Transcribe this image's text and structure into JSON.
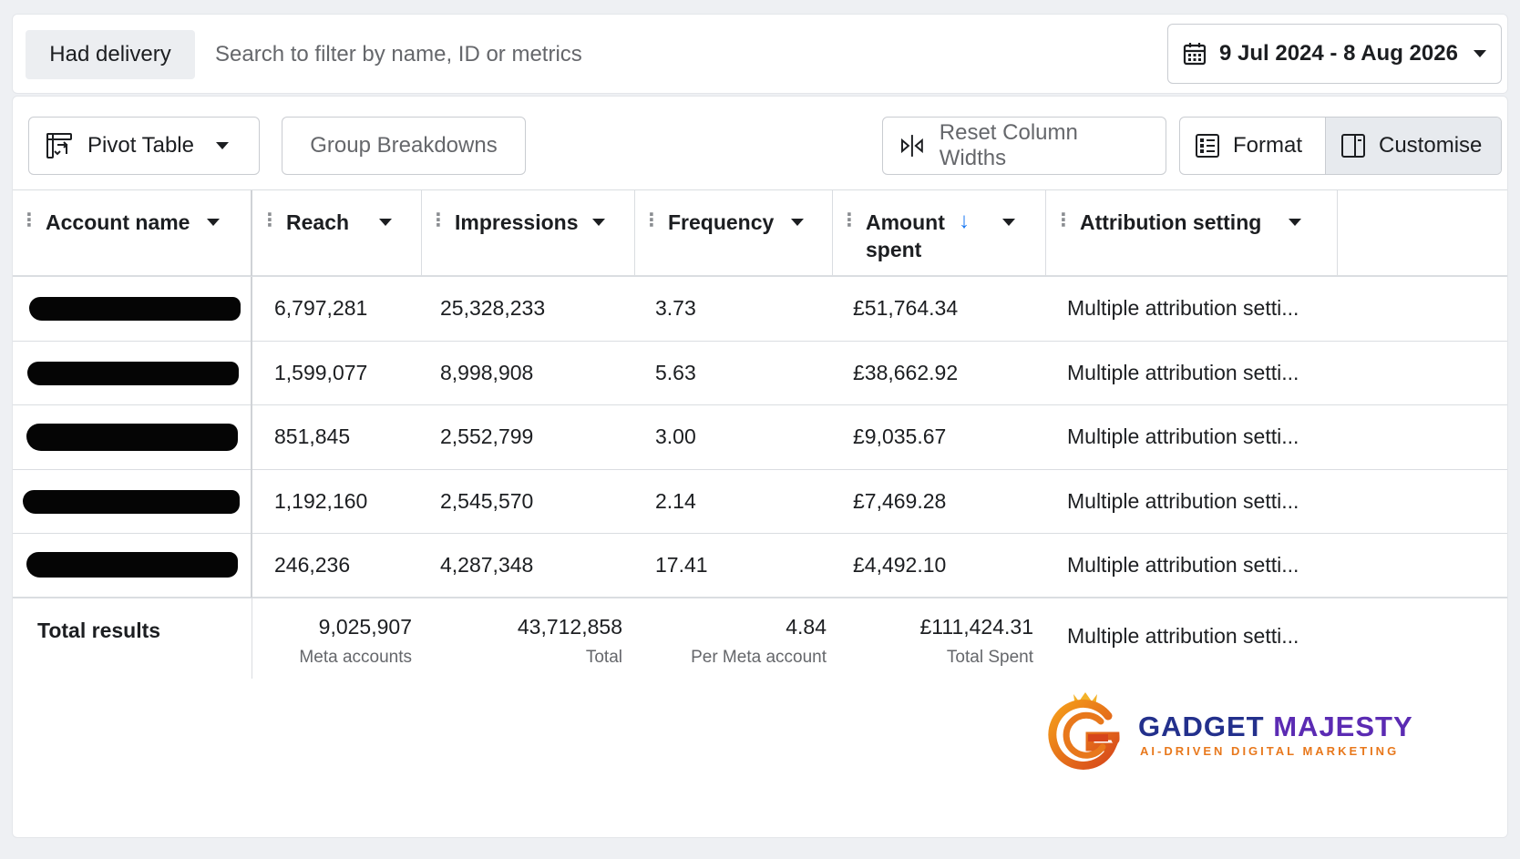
{
  "filter_bar": {
    "chip_label": "Had delivery",
    "search_placeholder": "Search to filter by name, ID or metrics",
    "date_range": "9 Jul 2024 - 8 Aug 2026"
  },
  "toolbar": {
    "pivot_label": "Pivot Table",
    "group_label": "Group Breakdowns",
    "reset_label": "Reset Column Widths",
    "format_label": "Format",
    "customise_label": "Customise"
  },
  "table": {
    "columns": [
      "Account name",
      "Reach",
      "Impressions",
      "Frequency",
      "Amount spent",
      "Attribution setting"
    ],
    "rows": [
      {
        "reach": "6,797,281",
        "impressions": "25,328,233",
        "frequency": "3.73",
        "amount": "£51,764.34",
        "attribution": "Multiple attribution setti..."
      },
      {
        "reach": "1,599,077",
        "impressions": "8,998,908",
        "frequency": "5.63",
        "amount": "£38,662.92",
        "attribution": "Multiple attribution setti..."
      },
      {
        "reach": "851,845",
        "impressions": "2,552,799",
        "frequency": "3.00",
        "amount": "£9,035.67",
        "attribution": "Multiple attribution setti..."
      },
      {
        "reach": "1,192,160",
        "impressions": "2,545,570",
        "frequency": "2.14",
        "amount": "£7,469.28",
        "attribution": "Multiple attribution setti..."
      },
      {
        "reach": "246,236",
        "impressions": "4,287,348",
        "frequency": "17.41",
        "amount": "£4,492.10",
        "attribution": "Multiple attribution setti..."
      }
    ],
    "totals": {
      "label": "Total results",
      "reach": "9,025,907",
      "reach_sub": "Meta accounts",
      "impressions": "43,712,858",
      "impressions_sub": "Total",
      "frequency": "4.84",
      "frequency_sub": "Per Meta account",
      "amount": "£111,424.31",
      "amount_sub": "Total Spent",
      "attribution": "Multiple attribution setti..."
    },
    "sorted_column": "Amount spent",
    "sort_direction": "descending"
  },
  "logo": {
    "name_part1": "GADGET ",
    "name_part2": "MAJESTY",
    "tagline": "AI-DRIVEN DIGITAL MARKETING"
  },
  "colors": {
    "accent_blue": "#1877f2",
    "logo_navy": "#23308c",
    "logo_purple": "#5b2bb3",
    "logo_orange": "#e8781c"
  }
}
